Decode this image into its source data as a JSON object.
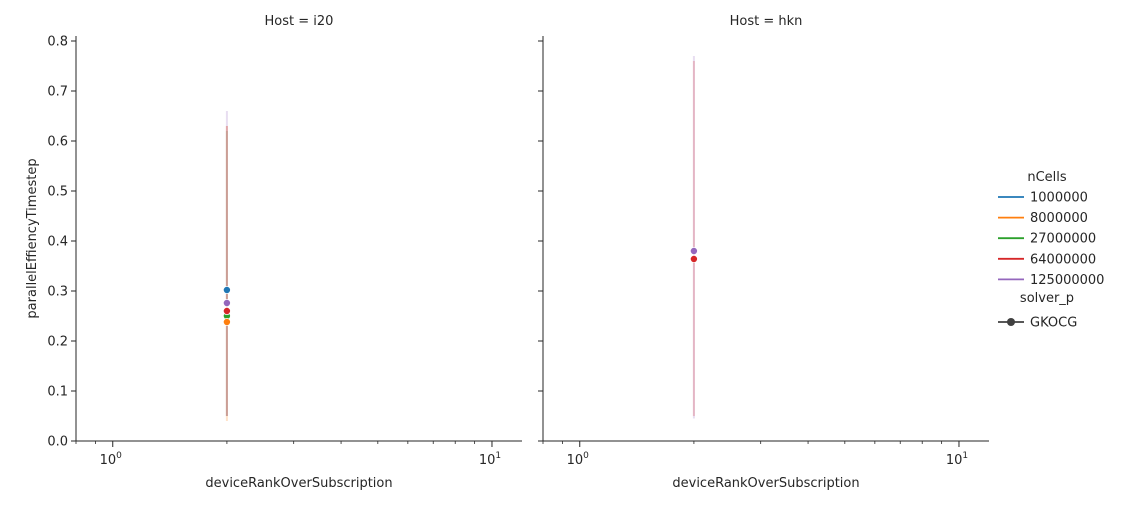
{
  "chart_data": {
    "type": "scatter",
    "x_scale": "log",
    "xlim": [
      0.8,
      12
    ],
    "ylim": [
      0,
      0.81
    ],
    "y_ticks": [
      0.0,
      0.1,
      0.2,
      0.3,
      0.4,
      0.5,
      0.6,
      0.7,
      0.8
    ],
    "y_tick_labels": [
      "0.0",
      "0.1",
      "0.2",
      "0.3",
      "0.4",
      "0.5",
      "0.6",
      "0.7",
      "0.8"
    ],
    "x_ticks": [
      {
        "value": 1,
        "base": "10",
        "exp": "0"
      },
      {
        "value": 10,
        "base": "10",
        "exp": "1"
      }
    ],
    "xlabel": "deviceRankOverSubscription",
    "ylabel": "parallelEffiencyTimestep",
    "grid": false,
    "legend_placement": "right",
    "legend": {
      "hue_title": "nCells",
      "hue_entries": [
        {
          "label": "1000000",
          "color": "#1f77b4"
        },
        {
          "label": "8000000",
          "color": "#ff7f0e"
        },
        {
          "label": "27000000",
          "color": "#2ca02c"
        },
        {
          "label": "64000000",
          "color": "#d62728"
        },
        {
          "label": "125000000",
          "color": "#9467bd"
        }
      ],
      "style_title": "solver_p",
      "style_entries": [
        {
          "label": "GKOCG",
          "color": "#404040"
        }
      ]
    },
    "panels": [
      {
        "title": "Host = i20",
        "bands": [
          {
            "series": "27000000",
            "x": 2,
            "low": 0.05,
            "high": 0.62,
            "color": "#2ca02c"
          },
          {
            "series": "8000000",
            "x": 2,
            "low": 0.04,
            "high": 0.63,
            "color": "#ff7f0e"
          },
          {
            "series": "64000000",
            "x": 2,
            "low": 0.05,
            "high": 0.63,
            "color": "#d62728"
          },
          {
            "series": "125000000",
            "x": 2,
            "low": 0.05,
            "high": 0.66,
            "color": "#9467bd"
          }
        ],
        "points": [
          {
            "series": "27000000",
            "x": 2,
            "y": 0.25,
            "color": "#2ca02c"
          },
          {
            "series": "8000000",
            "x": 2,
            "y": 0.238,
            "color": "#ff7f0e"
          },
          {
            "series": "64000000",
            "x": 2,
            "y": 0.26,
            "color": "#d62728"
          },
          {
            "series": "125000000",
            "x": 2,
            "y": 0.276,
            "color": "#9467bd"
          },
          {
            "series": "1000000",
            "x": 2,
            "y": 0.302,
            "color": "#1f77b4"
          }
        ]
      },
      {
        "title": "Host = hkn",
        "bands": [
          {
            "series": "125000000",
            "x": 2,
            "low": 0.045,
            "high": 0.77,
            "color": "#9467bd"
          },
          {
            "series": "64000000",
            "x": 2,
            "low": 0.05,
            "high": 0.76,
            "color": "#d62728"
          }
        ],
        "points": [
          {
            "series": "125000000",
            "x": 2,
            "y": 0.38,
            "color": "#9467bd"
          },
          {
            "series": "64000000",
            "x": 2,
            "y": 0.364,
            "color": "#d62728"
          }
        ]
      }
    ]
  }
}
